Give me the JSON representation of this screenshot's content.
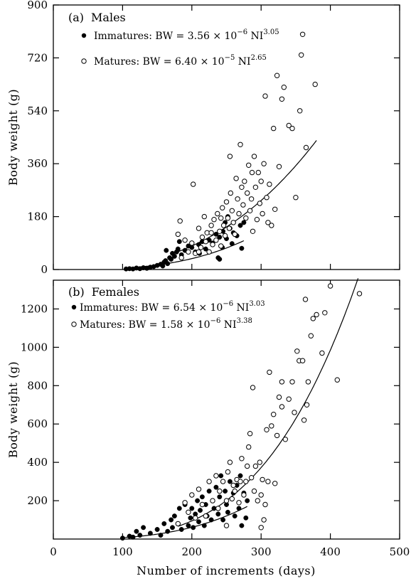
{
  "figure": {
    "shared_xlabel": "Number of increments (days)",
    "x_ticks": [
      "0",
      "100",
      "200",
      "300",
      "400",
      "500"
    ]
  },
  "chart_data": [
    {
      "type": "scatter",
      "panel": "(a)",
      "title": "Males",
      "xlabel": "Number of increments (days)",
      "ylabel": "Body weight (g)",
      "xlim": [
        0,
        500
      ],
      "ylim": [
        0,
        900
      ],
      "y_ticks": [
        "0",
        "180",
        "360",
        "540",
        "720",
        "900"
      ],
      "legend_placement": "top-left",
      "series": [
        {
          "name": "Immatures",
          "marker": "filled-circle",
          "equation": {
            "prefix": "Immatures: BW = 3.56 × 10",
            "exp1": "−6",
            "mid": " NI",
            "exp2": "3.05"
          },
          "fit": {
            "a": 3.56e-06,
            "b": 3.05,
            "x_range": [
              105,
              275
            ]
          },
          "points": [
            [
              105,
              2
            ],
            [
              110,
              3
            ],
            [
              115,
              2
            ],
            [
              120,
              5
            ],
            [
              125,
              3
            ],
            [
              130,
              6
            ],
            [
              135,
              4
            ],
            [
              140,
              8
            ],
            [
              145,
              10
            ],
            [
              150,
              14
            ],
            [
              155,
              18
            ],
            [
              158,
              12
            ],
            [
              160,
              25
            ],
            [
              162,
              30
            ],
            [
              165,
              20
            ],
            [
              168,
              40
            ],
            [
              170,
              35
            ],
            [
              172,
              55
            ],
            [
              175,
              45
            ],
            [
              178,
              60
            ],
            [
              180,
              70
            ],
            [
              185,
              50
            ],
            [
              190,
              65
            ],
            [
              195,
              80
            ],
            [
              200,
              75
            ],
            [
              205,
              60
            ],
            [
              210,
              85
            ],
            [
              215,
              95
            ],
            [
              220,
              70
            ],
            [
              225,
              100
            ],
            [
              230,
              90
            ],
            [
              235,
              120
            ],
            [
              240,
              110
            ],
            [
              245,
              130
            ],
            [
              250,
              105
            ],
            [
              255,
              140
            ],
            [
              260,
              125
            ],
            [
              265,
              115
            ],
            [
              270,
              150
            ],
            [
              275,
              160
            ],
            [
              163,
              65
            ],
            [
              182,
              95
            ],
            [
              211,
              55
            ],
            [
              238,
              40
            ],
            [
              244,
              75
            ],
            [
              258,
              88
            ],
            [
              272,
              72
            ],
            [
              248,
              160
            ],
            [
              252,
              180
            ],
            [
              240,
              35
            ]
          ]
        },
        {
          "name": "Matures",
          "marker": "open-circle",
          "equation": {
            "prefix": "Matures: BW = 6.40 × 10",
            "exp1": "−5",
            "mid": " NI",
            "exp2": "2.65"
          },
          "fit": {
            "a": 6.4e-05,
            "b": 2.65,
            "x_range": [
              180,
              380
            ]
          },
          "points": [
            [
              180,
              120
            ],
            [
              183,
              165
            ],
            [
              185,
              40
            ],
            [
              190,
              100
            ],
            [
              195,
              60
            ],
            [
              200,
              90
            ],
            [
              202,
              290
            ],
            [
              205,
              55
            ],
            [
              210,
              140
            ],
            [
              213,
              75
            ],
            [
              215,
              110
            ],
            [
              218,
              180
            ],
            [
              220,
              95
            ],
            [
              222,
              125
            ],
            [
              225,
              60
            ],
            [
              228,
              150
            ],
            [
              230,
              85
            ],
            [
              232,
              170
            ],
            [
              235,
              100
            ],
            [
              237,
              190
            ],
            [
              240,
              130
            ],
            [
              242,
              80
            ],
            [
              244,
              210
            ],
            [
              246,
              150
            ],
            [
              248,
              115
            ],
            [
              250,
              230
            ],
            [
              252,
              175
            ],
            [
              254,
              140
            ],
            [
              256,
              260
            ],
            [
              258,
              200
            ],
            [
              260,
              160
            ],
            [
              262,
              120
            ],
            [
              264,
              310
            ],
            [
              266,
              240
            ],
            [
              268,
              190
            ],
            [
              270,
              425
            ],
            [
              272,
              280
            ],
            [
              274,
              220
            ],
            [
              276,
              300
            ],
            [
              278,
              175
            ],
            [
              280,
              260
            ],
            [
              282,
              355
            ],
            [
              284,
              200
            ],
            [
              286,
              240
            ],
            [
              288,
              130
            ],
            [
              290,
              385
            ],
            [
              292,
              280
            ],
            [
              294,
              170
            ],
            [
              296,
              330
            ],
            [
              298,
              225
            ],
            [
              300,
              300
            ],
            [
              302,
              190
            ],
            [
              304,
              360
            ],
            [
              306,
              590
            ],
            [
              308,
              245
            ],
            [
              310,
              160
            ],
            [
              312,
              290
            ],
            [
              315,
              150
            ],
            [
              318,
              480
            ],
            [
              320,
              205
            ],
            [
              323,
              660
            ],
            [
              326,
              350
            ],
            [
              330,
              580
            ],
            [
              333,
              620
            ],
            [
              340,
              490
            ],
            [
              345,
              480
            ],
            [
              350,
              245
            ],
            [
              356,
              540
            ],
            [
              358,
              730
            ],
            [
              360,
              800
            ],
            [
              365,
              415
            ],
            [
              378,
              630
            ],
            [
              255,
              385
            ],
            [
              287,
              330
            ],
            [
              210,
              60
            ],
            [
              228,
              125
            ],
            [
              242,
              175
            ]
          ]
        }
      ]
    },
    {
      "type": "scatter",
      "panel": "(b)",
      "title": "Females",
      "xlabel": "Number of increments (days)",
      "ylabel": "Body weight (g)",
      "xlim": [
        0,
        500
      ],
      "ylim": [
        0,
        1350
      ],
      "y_ticks": [
        "200",
        "400",
        "600",
        "800",
        "1000",
        "1200"
      ],
      "legend_placement": "top-left",
      "series": [
        {
          "name": "Immatures",
          "marker": "filled-circle",
          "equation": {
            "prefix": "Immatures: BW = 6.54 × 10",
            "exp1": "−6",
            "mid": " NI",
            "exp2": "3.03"
          },
          "fit": {
            "a": 6.54e-06,
            "b": 3.03,
            "x_range": [
              100,
              280
            ]
          },
          "points": [
            [
              100,
              5
            ],
            [
              110,
              15
            ],
            [
              115,
              10
            ],
            [
              120,
              40
            ],
            [
              125,
              20
            ],
            [
              130,
              60
            ],
            [
              140,
              30
            ],
            [
              150,
              50
            ],
            [
              155,
              20
            ],
            [
              160,
              80
            ],
            [
              165,
              40
            ],
            [
              170,
              100
            ],
            [
              172,
              60
            ],
            [
              175,
              120
            ],
            [
              180,
              80
            ],
            [
              182,
              160
            ],
            [
              185,
              50
            ],
            [
              190,
              180
            ],
            [
              195,
              70
            ],
            [
              198,
              110
            ],
            [
              200,
              160
            ],
            [
              202,
              60
            ],
            [
              205,
              130
            ],
            [
              208,
              200
            ],
            [
              210,
              90
            ],
            [
              212,
              150
            ],
            [
              215,
              220
            ],
            [
              218,
              70
            ],
            [
              220,
              180
            ],
            [
              222,
              120
            ],
            [
              225,
              250
            ],
            [
              228,
              100
            ],
            [
              230,
              200
            ],
            [
              232,
              160
            ],
            [
              235,
              270
            ],
            [
              238,
              130
            ],
            [
              240,
              220
            ],
            [
              242,
              330
            ],
            [
              245,
              100
            ],
            [
              248,
              250
            ],
            [
              250,
              180
            ],
            [
              252,
              140
            ],
            [
              255,
              300
            ],
            [
              258,
              210
            ],
            [
              260,
              240
            ],
            [
              262,
              120
            ],
            [
              265,
              280
            ],
            [
              268,
              160
            ],
            [
              270,
              330
            ],
            [
              272,
              70
            ],
            [
              275,
              240
            ],
            [
              278,
              110
            ],
            [
              280,
              200
            ]
          ]
        },
        {
          "name": "Matures",
          "marker": "open-circle",
          "equation": {
            "prefix": "Matures: BW = 1.58 × 10",
            "exp1": "−6",
            "mid": " NI",
            "exp2": "3.38"
          },
          "fit": {
            "a": 1.58e-06,
            "b": 3.38,
            "x_range": [
              180,
              440
            ]
          },
          "points": [
            [
              180,
              80
            ],
            [
              190,
              190
            ],
            [
              195,
              140
            ],
            [
              200,
              230
            ],
            [
              205,
              110
            ],
            [
              210,
              260
            ],
            [
              215,
              180
            ],
            [
              220,
              120
            ],
            [
              225,
              300
            ],
            [
              230,
              200
            ],
            [
              235,
              330
            ],
            [
              238,
              160
            ],
            [
              240,
              250
            ],
            [
              245,
              300
            ],
            [
              250,
              200
            ],
            [
              252,
              350
            ],
            [
              255,
              400
            ],
            [
              258,
              210
            ],
            [
              260,
              280
            ],
            [
              262,
              250
            ],
            [
              265,
              310
            ],
            [
              268,
              190
            ],
            [
              270,
              300
            ],
            [
              272,
              420
            ],
            [
              275,
              230
            ],
            [
              278,
              300
            ],
            [
              280,
              380
            ],
            [
              282,
              480
            ],
            [
              284,
              550
            ],
            [
              286,
              320
            ],
            [
              288,
              790
            ],
            [
              290,
              250
            ],
            [
              292,
              380
            ],
            [
              295,
              200
            ],
            [
              298,
              400
            ],
            [
              300,
              230
            ],
            [
              302,
              310
            ],
            [
              304,
              100
            ],
            [
              306,
              180
            ],
            [
              308,
              570
            ],
            [
              310,
              300
            ],
            [
              312,
              870
            ],
            [
              315,
              590
            ],
            [
              318,
              650
            ],
            [
              320,
              290
            ],
            [
              323,
              540
            ],
            [
              326,
              740
            ],
            [
              330,
              820
            ],
            [
              335,
              520
            ],
            [
              340,
              730
            ],
            [
              345,
              820
            ],
            [
              348,
              660
            ],
            [
              352,
              980
            ],
            [
              355,
              930
            ],
            [
              360,
              930
            ],
            [
              362,
              620
            ],
            [
              364,
              1250
            ],
            [
              366,
              700
            ],
            [
              368,
              820
            ],
            [
              372,
              1060
            ],
            [
              375,
              1150
            ],
            [
              380,
              1170
            ],
            [
              388,
              970
            ],
            [
              392,
              1180
            ],
            [
              400,
              1320
            ],
            [
              410,
              830
            ],
            [
              442,
              1280
            ],
            [
              250,
              70
            ],
            [
              300,
              60
            ],
            [
              330,
              690
            ]
          ]
        }
      ]
    }
  ]
}
